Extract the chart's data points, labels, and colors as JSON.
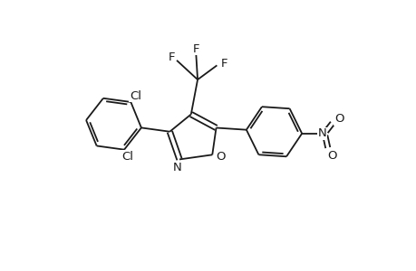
{
  "bg_color": "#ffffff",
  "line_color": "#1a1a1a",
  "line_width": 1.3,
  "font_size": 9.5,
  "figsize": [
    4.6,
    3.0
  ],
  "dpi": 100,
  "xlim": [
    0.0,
    10.0
  ],
  "ylim": [
    0.5,
    7.5
  ]
}
